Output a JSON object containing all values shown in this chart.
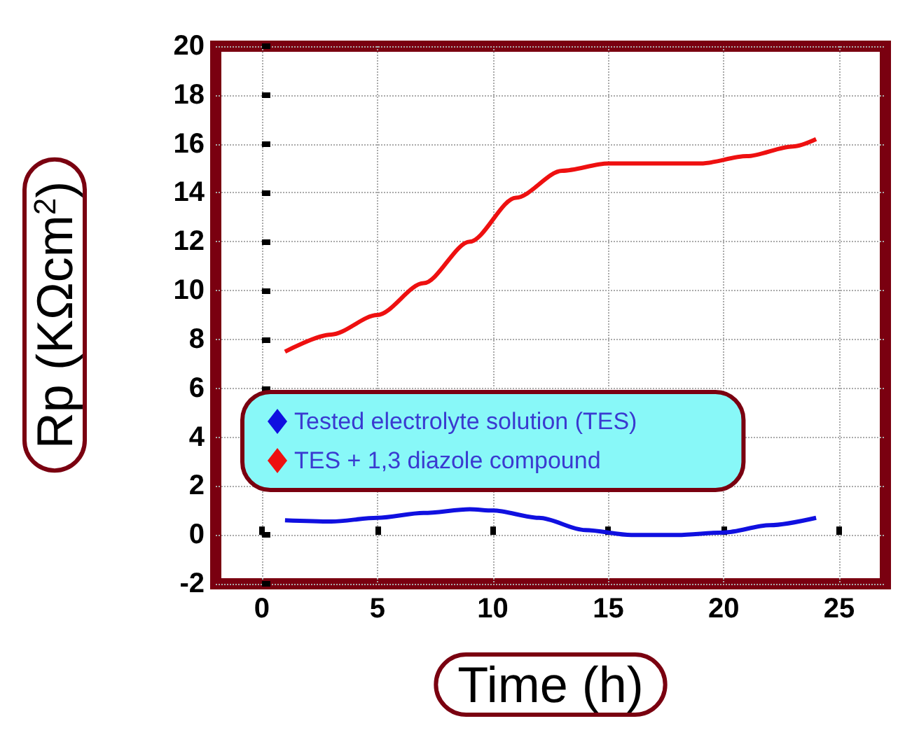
{
  "chart_data": {
    "type": "line",
    "xlabel": "Time (h)",
    "ylabel": "Rp (KΩcm$^{2}$)",
    "xlim": [
      -2,
      27
    ],
    "xticks": [
      0,
      5,
      10,
      15,
      20,
      25
    ],
    "ylim": [
      -2,
      20
    ],
    "yticks": [
      -2,
      0,
      2,
      4,
      6,
      8,
      10,
      12,
      14,
      16,
      18,
      20
    ],
    "grid": true,
    "legend": "left",
    "marker": "none",
    "line_style": "solid",
    "series": [
      {
        "name": "Tested electrolyte solution (TES)",
        "color": "#1010e0",
        "x": [
          1,
          3,
          5,
          7,
          9,
          10,
          12,
          14,
          16,
          18,
          20,
          22,
          24
        ],
        "values": [
          0.6,
          0.55,
          0.7,
          0.9,
          1.05,
          1.0,
          0.7,
          0.2,
          0.0,
          0.0,
          0.1,
          0.4,
          0.7
        ]
      },
      {
        "name": "TES + 1,3 diazole compound",
        "color": "#ee1010",
        "x": [
          1,
          3,
          5,
          7,
          9,
          11,
          13,
          15,
          17,
          19,
          21,
          23,
          24
        ],
        "values": [
          7.5,
          8.2,
          9.0,
          10.3,
          12.0,
          13.8,
          14.9,
          15.2,
          15.2,
          15.2,
          15.5,
          15.9,
          16.2
        ]
      }
    ]
  }
}
